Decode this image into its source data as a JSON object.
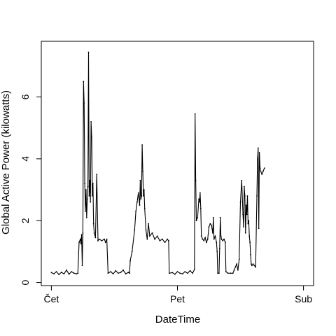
{
  "chart_data": {
    "type": "line",
    "title": "",
    "xlabel": "DateTime",
    "ylabel": "Global Active Power (kilowatts)",
    "x_unit": "days",
    "x_ticks": [
      {
        "value": 0,
        "label": "Čet"
      },
      {
        "value": 1,
        "label": "Pet"
      },
      {
        "value": 2,
        "label": "Sub"
      }
    ],
    "y_ticks": [
      0,
      2,
      4,
      6
    ],
    "xlim": [
      -0.08,
      2.08
    ],
    "ylim": [
      -0.1,
      7.8
    ],
    "grid": false,
    "legend": "none",
    "line_color": "#000000",
    "series": [
      {
        "name": "",
        "points": [
          [
            0.0,
            0.32
          ],
          [
            0.02,
            0.28
          ],
          [
            0.04,
            0.35
          ],
          [
            0.06,
            0.26
          ],
          [
            0.08,
            0.33
          ],
          [
            0.1,
            0.28
          ],
          [
            0.12,
            0.4
          ],
          [
            0.14,
            0.27
          ],
          [
            0.16,
            0.35
          ],
          [
            0.18,
            0.3
          ],
          [
            0.2,
            0.28
          ],
          [
            0.21,
            0.3
          ],
          [
            0.22,
            1.3
          ],
          [
            0.23,
            1.4
          ],
          [
            0.235,
            1.25
          ],
          [
            0.24,
            1.55
          ],
          [
            0.245,
            0.55
          ],
          [
            0.25,
            1.6
          ],
          [
            0.255,
            6.5
          ],
          [
            0.26,
            5.8
          ],
          [
            0.265,
            3.2
          ],
          [
            0.27,
            2.3
          ],
          [
            0.275,
            3.0
          ],
          [
            0.28,
            2.1
          ],
          [
            0.285,
            2.7
          ],
          [
            0.29,
            3.1
          ],
          [
            0.295,
            7.45
          ],
          [
            0.3,
            2.8
          ],
          [
            0.305,
            3.3
          ],
          [
            0.31,
            2.6
          ],
          [
            0.315,
            5.2
          ],
          [
            0.32,
            4.7
          ],
          [
            0.325,
            2.8
          ],
          [
            0.33,
            3.2
          ],
          [
            0.335,
            1.9
          ],
          [
            0.34,
            1.6
          ],
          [
            0.35,
            1.45
          ],
          [
            0.36,
            3.5
          ],
          [
            0.37,
            1.35
          ],
          [
            0.38,
            1.4
          ],
          [
            0.4,
            1.35
          ],
          [
            0.42,
            1.4
          ],
          [
            0.43,
            1.3
          ],
          [
            0.44,
            1.4
          ],
          [
            0.45,
            0.3
          ],
          [
            0.47,
            0.35
          ],
          [
            0.49,
            0.28
          ],
          [
            0.51,
            0.38
          ],
          [
            0.53,
            0.3
          ],
          [
            0.55,
            0.33
          ],
          [
            0.57,
            0.4
          ],
          [
            0.59,
            0.28
          ],
          [
            0.61,
            0.33
          ],
          [
            0.62,
            0.3
          ],
          [
            0.625,
            0.7
          ],
          [
            0.64,
            1.0
          ],
          [
            0.66,
            1.7
          ],
          [
            0.67,
            2.3
          ],
          [
            0.68,
            2.6
          ],
          [
            0.69,
            2.9
          ],
          [
            0.7,
            2.5
          ],
          [
            0.705,
            3.3
          ],
          [
            0.71,
            2.7
          ],
          [
            0.715,
            2.8
          ],
          [
            0.72,
            4.45
          ],
          [
            0.725,
            3.6
          ],
          [
            0.73,
            2.8
          ],
          [
            0.735,
            3.0
          ],
          [
            0.74,
            2.4
          ],
          [
            0.75,
            1.7
          ],
          [
            0.76,
            1.4
          ],
          [
            0.77,
            1.9
          ],
          [
            0.78,
            1.5
          ],
          [
            0.8,
            1.6
          ],
          [
            0.82,
            1.4
          ],
          [
            0.84,
            1.5
          ],
          [
            0.86,
            1.35
          ],
          [
            0.88,
            1.4
          ],
          [
            0.9,
            1.3
          ],
          [
            0.92,
            1.4
          ],
          [
            0.93,
            1.35
          ],
          [
            0.935,
            0.3
          ],
          [
            0.96,
            0.32
          ],
          [
            0.98,
            0.27
          ],
          [
            1.0,
            0.35
          ],
          [
            1.02,
            0.3
          ],
          [
            1.04,
            0.28
          ],
          [
            1.06,
            0.35
          ],
          [
            1.08,
            0.3
          ],
          [
            1.1,
            0.38
          ],
          [
            1.12,
            0.3
          ],
          [
            1.135,
            0.42
          ],
          [
            1.14,
            5.45
          ],
          [
            1.145,
            3.3
          ],
          [
            1.15,
            2.0
          ],
          [
            1.16,
            2.1
          ],
          [
            1.17,
            2.7
          ],
          [
            1.175,
            2.6
          ],
          [
            1.18,
            2.9
          ],
          [
            1.185,
            2.4
          ],
          [
            1.19,
            1.5
          ],
          [
            1.2,
            1.4
          ],
          [
            1.21,
            1.35
          ],
          [
            1.22,
            1.45
          ],
          [
            1.23,
            1.3
          ],
          [
            1.24,
            1.4
          ],
          [
            1.25,
            1.8
          ],
          [
            1.26,
            1.9
          ],
          [
            1.27,
            1.85
          ],
          [
            1.28,
            1.6
          ],
          [
            1.285,
            2.1
          ],
          [
            1.29,
            1.4
          ],
          [
            1.3,
            1.5
          ],
          [
            1.31,
            1.3
          ],
          [
            1.315,
            1.0
          ],
          [
            1.32,
            0.3
          ],
          [
            1.33,
            0.3
          ],
          [
            1.335,
            1.1
          ],
          [
            1.34,
            2.1
          ],
          [
            1.345,
            1.5
          ],
          [
            1.35,
            1.4
          ],
          [
            1.36,
            1.35
          ],
          [
            1.37,
            1.4
          ],
          [
            1.38,
            1.3
          ],
          [
            1.385,
            0.35
          ],
          [
            1.4,
            0.3
          ],
          [
            1.42,
            0.3
          ],
          [
            1.44,
            0.3
          ],
          [
            1.45,
            0.4
          ],
          [
            1.46,
            0.5
          ],
          [
            1.47,
            0.6
          ],
          [
            1.48,
            0.4
          ],
          [
            1.49,
            0.75
          ],
          [
            1.5,
            2.6
          ],
          [
            1.51,
            3.3
          ],
          [
            1.52,
            2.2
          ],
          [
            1.525,
            1.8
          ],
          [
            1.53,
            3.1
          ],
          [
            1.535,
            2.8
          ],
          [
            1.54,
            1.6
          ],
          [
            1.545,
            2.5
          ],
          [
            1.55,
            2.2
          ],
          [
            1.555,
            2.8
          ],
          [
            1.56,
            1.9
          ],
          [
            1.565,
            2.0
          ],
          [
            1.57,
            1.5
          ],
          [
            1.575,
            1.3
          ],
          [
            1.58,
            0.9
          ],
          [
            1.585,
            0.6
          ],
          [
            1.59,
            0.55
          ],
          [
            1.6,
            0.6
          ],
          [
            1.61,
            0.55
          ],
          [
            1.62,
            0.5
          ],
          [
            1.63,
            2.8
          ],
          [
            1.635,
            4.0
          ],
          [
            1.64,
            4.35
          ],
          [
            1.645,
            1.75
          ],
          [
            1.65,
            4.2
          ],
          [
            1.655,
            3.7
          ],
          [
            1.66,
            3.6
          ],
          [
            1.67,
            3.5
          ],
          [
            1.68,
            3.6
          ],
          [
            1.69,
            3.7
          ]
        ]
      }
    ]
  }
}
